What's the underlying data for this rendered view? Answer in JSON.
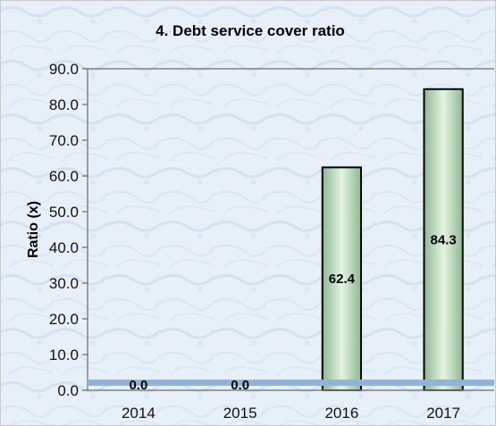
{
  "chart_data": {
    "type": "bar",
    "title": "4. Debt service cover ratio",
    "xlabel": "",
    "ylabel": "Ratio (x)",
    "categories": [
      "2014",
      "2015",
      "2016",
      "2017"
    ],
    "values": [
      0.0,
      0.0,
      62.4,
      84.3
    ],
    "data_labels": [
      "0.0",
      "0.0",
      "62.4",
      "84.3"
    ],
    "ylim": [
      0,
      90
    ],
    "yticks": [
      0,
      10,
      20,
      30,
      40,
      50,
      60,
      70,
      80,
      90
    ],
    "ytick_labels": [
      "0.0",
      "10.0",
      "20.0",
      "30.0",
      "40.0",
      "50.0",
      "60.0",
      "70.0",
      "80.0",
      "90.0"
    ],
    "grid": false,
    "legend": "none",
    "colors": {
      "background": "#e7f0f8",
      "bar_fill_edge": "#8fb891",
      "bar_fill_center": "#e4f3e2",
      "bar_stroke": "#000000",
      "axis": "#808080",
      "baseline_band": "#8fb4dc"
    }
  }
}
